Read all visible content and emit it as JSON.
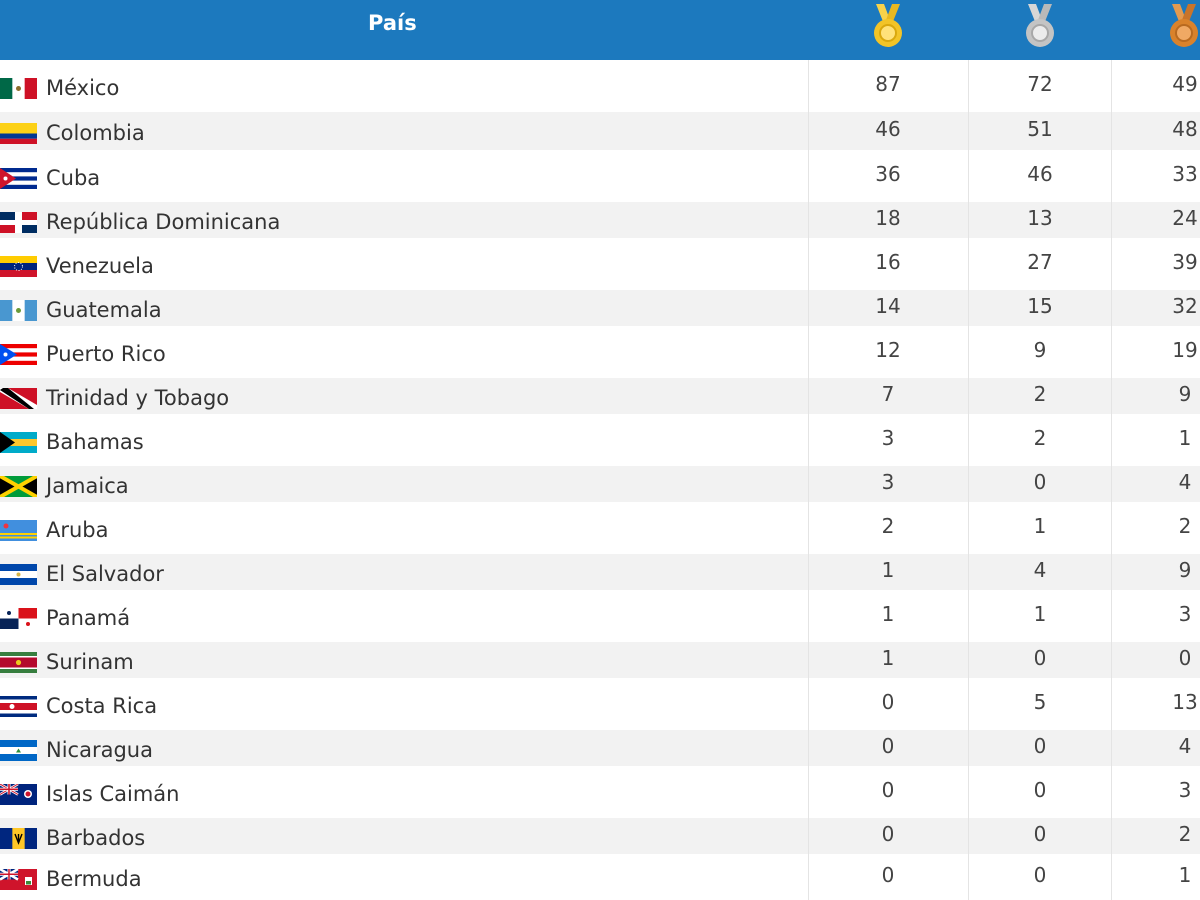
{
  "header": {
    "title": "País",
    "medals": [
      {
        "kind": "gold",
        "icon": "gold-medal-icon",
        "color": "#f2c428"
      },
      {
        "kind": "silver",
        "icon": "silver-medal-icon",
        "color": "#c4c4c4"
      },
      {
        "kind": "bronze",
        "icon": "bronze-medal-icon",
        "color": "#d9822b"
      }
    ]
  },
  "colors": {
    "header_bg": "#1c79be",
    "row_alt": "#f2f2f2",
    "text": "#333333"
  },
  "rows": [
    {
      "country": "México",
      "flag": "mexico-flag-icon",
      "gold": "87",
      "silver": "72",
      "bronze": "49"
    },
    {
      "country": "Colombia",
      "flag": "colombia-flag-icon",
      "gold": "46",
      "silver": "51",
      "bronze": "48"
    },
    {
      "country": "Cuba",
      "flag": "cuba-flag-icon",
      "gold": "36",
      "silver": "46",
      "bronze": "33"
    },
    {
      "country": "República Dominicana",
      "flag": "dominican-republic-flag-icon",
      "gold": "18",
      "silver": "13",
      "bronze": "24"
    },
    {
      "country": "Venezuela",
      "flag": "venezuela-flag-icon",
      "gold": "16",
      "silver": "27",
      "bronze": "39"
    },
    {
      "country": "Guatemala",
      "flag": "guatemala-flag-icon",
      "gold": "14",
      "silver": "15",
      "bronze": "32"
    },
    {
      "country": "Puerto Rico",
      "flag": "puerto-rico-flag-icon",
      "gold": "12",
      "silver": "9",
      "bronze": "19"
    },
    {
      "country": "Trinidad y Tobago",
      "flag": "trinidad-tobago-flag-icon",
      "gold": "7",
      "silver": "2",
      "bronze": "9"
    },
    {
      "country": "Bahamas",
      "flag": "bahamas-flag-icon",
      "gold": "3",
      "silver": "2",
      "bronze": "1"
    },
    {
      "country": "Jamaica",
      "flag": "jamaica-flag-icon",
      "gold": "3",
      "silver": "0",
      "bronze": "4"
    },
    {
      "country": "Aruba",
      "flag": "aruba-flag-icon",
      "gold": "2",
      "silver": "1",
      "bronze": "2"
    },
    {
      "country": "El Salvador",
      "flag": "el-salvador-flag-icon",
      "gold": "1",
      "silver": "4",
      "bronze": "9"
    },
    {
      "country": "Panamá",
      "flag": "panama-flag-icon",
      "gold": "1",
      "silver": "1",
      "bronze": "3"
    },
    {
      "country": "Surinam",
      "flag": "suriname-flag-icon",
      "gold": "1",
      "silver": "0",
      "bronze": "0"
    },
    {
      "country": "Costa Rica",
      "flag": "costa-rica-flag-icon",
      "gold": "0",
      "silver": "5",
      "bronze": "13"
    },
    {
      "country": "Nicaragua",
      "flag": "nicaragua-flag-icon",
      "gold": "0",
      "silver": "0",
      "bronze": "4"
    },
    {
      "country": "Islas Caimán",
      "flag": "cayman-islands-flag-icon",
      "gold": "0",
      "silver": "0",
      "bronze": "3"
    },
    {
      "country": "Barbados",
      "flag": "barbados-flag-icon",
      "gold": "0",
      "silver": "0",
      "bronze": "2"
    },
    {
      "country": "Bermuda",
      "flag": "bermuda-flag-icon",
      "gold": "0",
      "silver": "0",
      "bronze": "1"
    }
  ]
}
